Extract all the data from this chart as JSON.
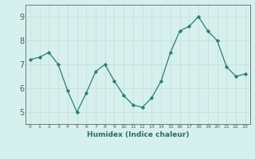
{
  "x": [
    0,
    1,
    2,
    3,
    4,
    5,
    6,
    7,
    8,
    9,
    10,
    11,
    12,
    13,
    14,
    15,
    16,
    17,
    18,
    19,
    20,
    21,
    22,
    23
  ],
  "y": [
    7.2,
    7.3,
    7.5,
    7.0,
    5.9,
    5.0,
    5.8,
    6.7,
    7.0,
    6.3,
    5.7,
    5.3,
    5.2,
    5.6,
    6.3,
    7.5,
    8.4,
    8.6,
    9.0,
    8.4,
    8.0,
    6.9,
    6.5,
    6.6
  ],
  "line_color": "#2e7d6e",
  "marker": "D",
  "marker_size": 2.2,
  "bg_color": "#d6f0ee",
  "grid_color": "#c8deda",
  "xlabel": "Humidex (Indice chaleur)",
  "ylim": [
    4.5,
    9.5
  ],
  "xlim": [
    -0.5,
    23.5
  ],
  "yticks": [
    5,
    6,
    7,
    8,
    9
  ],
  "xticks": [
    0,
    1,
    2,
    3,
    4,
    5,
    6,
    7,
    8,
    9,
    10,
    11,
    12,
    13,
    14,
    15,
    16,
    17,
    18,
    19,
    20,
    21,
    22,
    23
  ],
  "xtick_labels": [
    "0",
    "1",
    "2",
    "3",
    "4",
    "5",
    "6",
    "7",
    "8",
    "9",
    "10",
    "11",
    "12",
    "13",
    "14",
    "15",
    "16",
    "17",
    "18",
    "19",
    "20",
    "21",
    "22",
    "23"
  ],
  "spine_color": "#666666"
}
